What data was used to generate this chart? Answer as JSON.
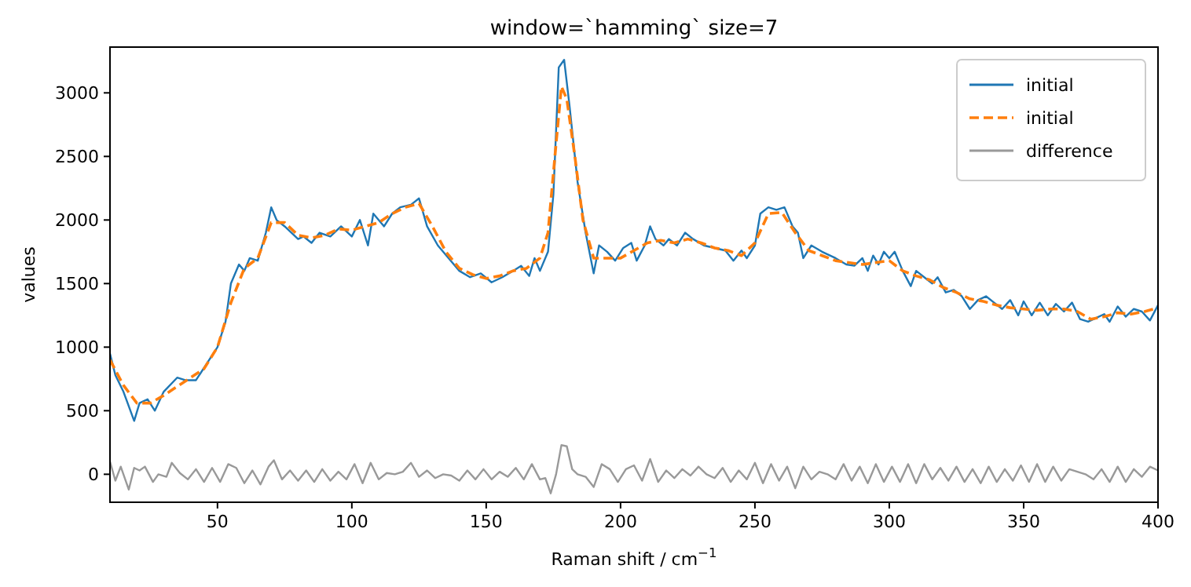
{
  "chart_data": {
    "type": "line",
    "title": "window=`hamming` size=7",
    "xlabel": "Raman shift / cm$^{−1}$",
    "ylabel": "values",
    "xlim": [
      10,
      400
    ],
    "ylim": [
      -220,
      3360
    ],
    "xticks": [
      50,
      100,
      150,
      200,
      250,
      300,
      350,
      400
    ],
    "yticks": [
      0,
      500,
      1000,
      1500,
      2000,
      2500,
      3000
    ],
    "grid": false,
    "legend": "top right",
    "series": [
      {
        "name": "initial",
        "color": "#1f77b4",
        "line_style": "solid",
        "x": [
          10,
          12,
          15,
          19,
          21,
          24,
          26.7,
          30,
          35,
          38,
          42,
          46,
          50,
          53,
          55,
          58,
          60,
          62,
          65,
          68,
          70,
          72,
          75,
          80,
          82,
          85,
          88,
          92,
          96,
          100,
          103,
          106,
          108,
          112,
          115,
          118,
          122,
          125,
          128,
          132,
          136,
          140,
          144,
          148,
          152,
          156,
          160,
          163,
          166,
          168,
          170,
          173,
          175,
          177,
          179,
          181,
          184,
          187,
          190,
          192,
          195,
          198,
          201,
          204,
          206,
          209,
          211,
          213,
          216,
          218,
          221,
          224,
          227,
          231,
          235,
          239,
          242,
          245,
          247,
          250,
          252,
          255,
          258,
          261,
          264,
          266,
          268,
          271,
          275,
          280,
          284,
          287,
          290,
          292,
          294,
          296,
          298,
          300,
          302,
          305,
          308,
          310,
          313,
          316,
          318,
          321,
          324,
          327,
          330,
          333,
          336,
          339,
          342,
          345,
          348,
          350,
          353,
          356,
          359,
          362,
          365,
          368,
          371,
          374,
          377,
          380,
          382,
          385,
          388,
          391,
          394,
          397,
          400
        ],
        "values": [
          950,
          780,
          650,
          420,
          560,
          590,
          500,
          650,
          760,
          740,
          740,
          870,
          1000,
          1200,
          1500,
          1650,
          1600,
          1700,
          1680,
          1900,
          2100,
          2000,
          1950,
          1850,
          1870,
          1820,
          1900,
          1870,
          1950,
          1870,
          2000,
          1800,
          2050,
          1950,
          2050,
          2100,
          2120,
          2170,
          1950,
          1800,
          1700,
          1600,
          1550,
          1580,
          1510,
          1550,
          1600,
          1640,
          1560,
          1700,
          1600,
          1750,
          2200,
          3200,
          3260,
          2900,
          2300,
          1900,
          1580,
          1800,
          1750,
          1680,
          1780,
          1820,
          1680,
          1800,
          1950,
          1850,
          1800,
          1850,
          1800,
          1900,
          1850,
          1800,
          1780,
          1760,
          1680,
          1760,
          1700,
          1800,
          2050,
          2100,
          2080,
          2100,
          1950,
          1900,
          1700,
          1800,
          1750,
          1700,
          1650,
          1640,
          1700,
          1600,
          1720,
          1650,
          1750,
          1700,
          1750,
          1600,
          1480,
          1600,
          1550,
          1500,
          1550,
          1430,
          1450,
          1400,
          1300,
          1370,
          1400,
          1350,
          1300,
          1370,
          1250,
          1360,
          1250,
          1350,
          1250,
          1340,
          1280,
          1350,
          1220,
          1200,
          1230,
          1260,
          1200,
          1320,
          1240,
          1300,
          1280,
          1210,
          1330
        ]
      },
      {
        "name": "initial",
        "color": "#ff7f0e",
        "line_style": "dashed",
        "x": [
          10,
          15,
          20,
          25,
          30,
          40,
          45,
          50,
          55,
          60,
          65,
          70,
          75,
          80,
          85,
          90,
          95,
          100,
          105,
          110,
          115,
          120,
          125,
          130,
          135,
          140,
          145,
          150,
          155,
          160,
          165,
          170,
          173,
          176,
          178,
          180,
          183,
          186,
          190,
          195,
          200,
          205,
          210,
          215,
          220,
          225,
          230,
          235,
          240,
          245,
          250,
          255,
          260,
          265,
          270,
          275,
          280,
          290,
          300,
          305,
          310,
          315,
          320,
          325,
          330,
          335,
          340,
          345,
          350,
          355,
          360,
          365,
          370,
          375,
          380,
          385,
          390,
          395,
          400
        ],
        "values": [
          900,
          700,
          560,
          560,
          620,
          760,
          830,
          1000,
          1350,
          1620,
          1700,
          1980,
          1980,
          1880,
          1860,
          1880,
          1930,
          1920,
          1950,
          1980,
          2050,
          2100,
          2130,
          1950,
          1750,
          1620,
          1570,
          1540,
          1560,
          1600,
          1620,
          1700,
          1900,
          2600,
          3050,
          2950,
          2500,
          2000,
          1700,
          1700,
          1700,
          1760,
          1820,
          1840,
          1820,
          1850,
          1820,
          1780,
          1760,
          1720,
          1820,
          2050,
          2060,
          1900,
          1760,
          1720,
          1680,
          1650,
          1680,
          1600,
          1560,
          1530,
          1470,
          1430,
          1380,
          1360,
          1330,
          1310,
          1300,
          1290,
          1300,
          1300,
          1280,
          1220,
          1240,
          1270,
          1260,
          1280,
          1310
        ]
      },
      {
        "name": "difference",
        "color": "#999999",
        "line_style": "solid",
        "x": [
          10,
          12,
          14,
          17,
          19,
          21,
          23,
          26,
          28,
          31,
          33,
          36,
          39,
          42,
          45,
          48,
          51,
          54,
          57,
          60,
          63,
          66,
          69,
          71,
          74,
          77,
          80,
          83,
          86,
          89,
          92,
          95,
          98,
          101,
          104,
          107,
          110,
          113,
          116,
          119,
          122,
          125,
          128,
          131,
          134,
          137,
          140,
          143,
          146,
          149,
          152,
          155,
          158,
          161,
          164,
          167,
          170,
          172,
          174,
          176,
          178,
          180,
          182,
          184,
          187,
          190,
          193,
          196,
          199,
          202,
          205,
          208,
          211,
          214,
          217,
          220,
          223,
          226,
          229,
          232,
          235,
          238,
          241,
          244,
          247,
          250,
          253,
          256,
          259,
          262,
          265,
          268,
          271,
          274,
          277,
          280,
          283,
          286,
          289,
          292,
          295,
          298,
          301,
          304,
          307,
          310,
          313,
          316,
          319,
          322,
          325,
          328,
          331,
          334,
          337,
          340,
          343,
          346,
          349,
          352,
          355,
          358,
          361,
          364,
          367,
          370,
          373,
          376,
          379,
          382,
          385,
          388,
          391,
          394,
          397,
          400
        ],
        "values": [
          100,
          -50,
          60,
          -120,
          50,
          30,
          60,
          -60,
          0,
          -20,
          90,
          10,
          -40,
          40,
          -60,
          50,
          -60,
          80,
          50,
          -70,
          30,
          -80,
          60,
          110,
          -40,
          30,
          -50,
          30,
          -60,
          40,
          -50,
          20,
          -40,
          80,
          -70,
          90,
          -40,
          10,
          0,
          20,
          90,
          -20,
          30,
          -30,
          0,
          -10,
          -50,
          30,
          -40,
          40,
          -40,
          20,
          -20,
          50,
          -40,
          80,
          -40,
          -30,
          -150,
          0,
          230,
          220,
          40,
          0,
          -20,
          -100,
          80,
          40,
          -60,
          40,
          70,
          -50,
          120,
          -60,
          30,
          -30,
          40,
          -10,
          60,
          0,
          -30,
          50,
          -60,
          30,
          -40,
          90,
          -70,
          80,
          -50,
          60,
          -110,
          60,
          -40,
          20,
          0,
          -40,
          80,
          -50,
          60,
          -70,
          80,
          -60,
          60,
          -60,
          80,
          -70,
          80,
          -40,
          50,
          -50,
          60,
          -60,
          40,
          -70,
          60,
          -60,
          40,
          -50,
          70,
          -60,
          80,
          -60,
          60,
          -50,
          40,
          20,
          0,
          -40,
          40,
          -60,
          60,
          -60,
          40,
          -20,
          60,
          30
        ]
      }
    ]
  }
}
